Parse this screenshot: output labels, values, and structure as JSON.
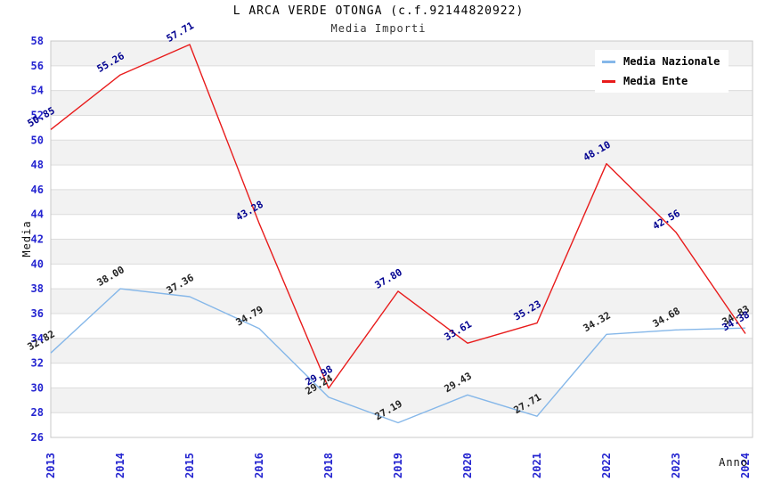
{
  "header": {
    "title": "L ARCA VERDE OTONGA (c.f.92144820922)",
    "subtitle": "Media Importi"
  },
  "axes": {
    "y_label": "Media",
    "x_label": "Anno"
  },
  "legend": {
    "items": [
      {
        "label": "Media Nazionale",
        "color": "#85b7e9"
      },
      {
        "label": "Media Ente",
        "color": "#e81b1b"
      }
    ]
  },
  "chart_data": {
    "type": "line",
    "title": "L ARCA VERDE OTONGA (c.f.92144820922)",
    "subtitle": "Media Importi",
    "xlabel": "Anno",
    "ylabel": "Media",
    "x": [
      "2013",
      "2014",
      "2015",
      "2016",
      "2018",
      "2019",
      "2020",
      "2021",
      "2022",
      "2023",
      "2024"
    ],
    "series": [
      {
        "name": "Media Nazionale",
        "color": "#85b7e9",
        "label_color": "#222222",
        "values": [
          32.82,
          38.0,
          37.36,
          34.79,
          29.24,
          27.19,
          29.43,
          27.71,
          34.32,
          34.68,
          34.83
        ]
      },
      {
        "name": "Media Ente",
        "color": "#e81b1b",
        "label_color": "#000090",
        "values": [
          50.85,
          55.26,
          57.71,
          43.28,
          29.98,
          37.8,
          33.61,
          35.23,
          48.1,
          42.56,
          34.38
        ]
      }
    ],
    "ylim": [
      26,
      58
    ],
    "yticks": [
      26,
      28,
      30,
      32,
      34,
      36,
      38,
      40,
      42,
      44,
      46,
      48,
      50,
      52,
      54,
      56,
      58
    ],
    "legend_position": "top-right",
    "grid": "horizontal",
    "tick_color": "#2424d0",
    "band_color": "#f2f2f2",
    "grid_color": "#dcdcdc",
    "spine_color": "#c8c8c8",
    "label_decimals": 2
  }
}
